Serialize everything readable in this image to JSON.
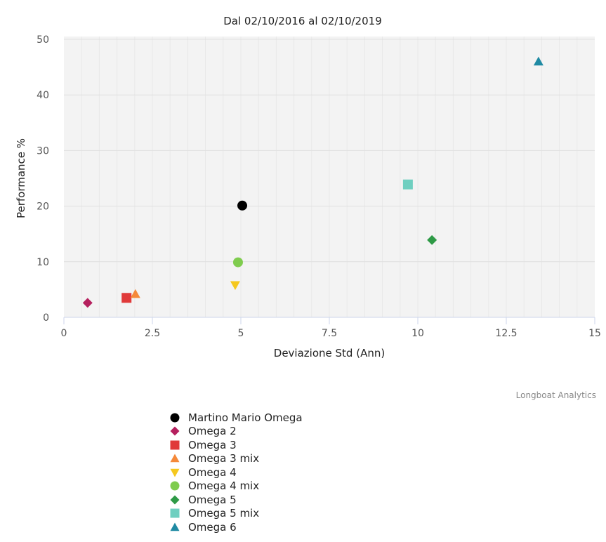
{
  "chart_data": {
    "type": "scatter",
    "title": "Dal 02/10/2016 al 02/10/2019",
    "xlabel": "Deviazione Std (Ann)",
    "ylabel": "Performance %",
    "xlim": [
      0,
      15
    ],
    "ylim": [
      0,
      50
    ],
    "xticks": [
      "0",
      "2.5",
      "5",
      "7.5",
      "10",
      "12.5",
      "15"
    ],
    "yticks": [
      "0",
      "10",
      "20",
      "30",
      "40",
      "50"
    ],
    "grid": true,
    "legend_position": "bottom",
    "credit": "Longboat Analytics",
    "series": [
      {
        "name": "Martino Mario Omega",
        "symbol": "circle",
        "color": "#000000",
        "x": 5.04,
        "y": 20.1
      },
      {
        "name": "Omega 2",
        "symbol": "diamond",
        "color": "#b5205e",
        "x": 0.67,
        "y": 2.6
      },
      {
        "name": "Omega 3",
        "symbol": "square",
        "color": "#e03a3a",
        "x": 1.77,
        "y": 3.5
      },
      {
        "name": "Omega 3 mix",
        "symbol": "triangle",
        "color": "#f5893a",
        "x": 2.02,
        "y": 4.2
      },
      {
        "name": "Omega 4",
        "symbol": "triangle-down",
        "color": "#f5c81e",
        "x": 4.84,
        "y": 5.8
      },
      {
        "name": "Omega 4 mix",
        "symbol": "circle",
        "color": "#7fcc4e",
        "x": 4.92,
        "y": 9.9
      },
      {
        "name": "Omega 5",
        "symbol": "diamond",
        "color": "#2e9a46",
        "x": 10.4,
        "y": 13.9
      },
      {
        "name": "Omega 5 mix",
        "symbol": "square",
        "color": "#6fcfc0",
        "x": 9.72,
        "y": 23.9
      },
      {
        "name": "Omega 6",
        "symbol": "triangle",
        "color": "#1f8aa3",
        "x": 13.41,
        "y": 46.0
      }
    ]
  }
}
